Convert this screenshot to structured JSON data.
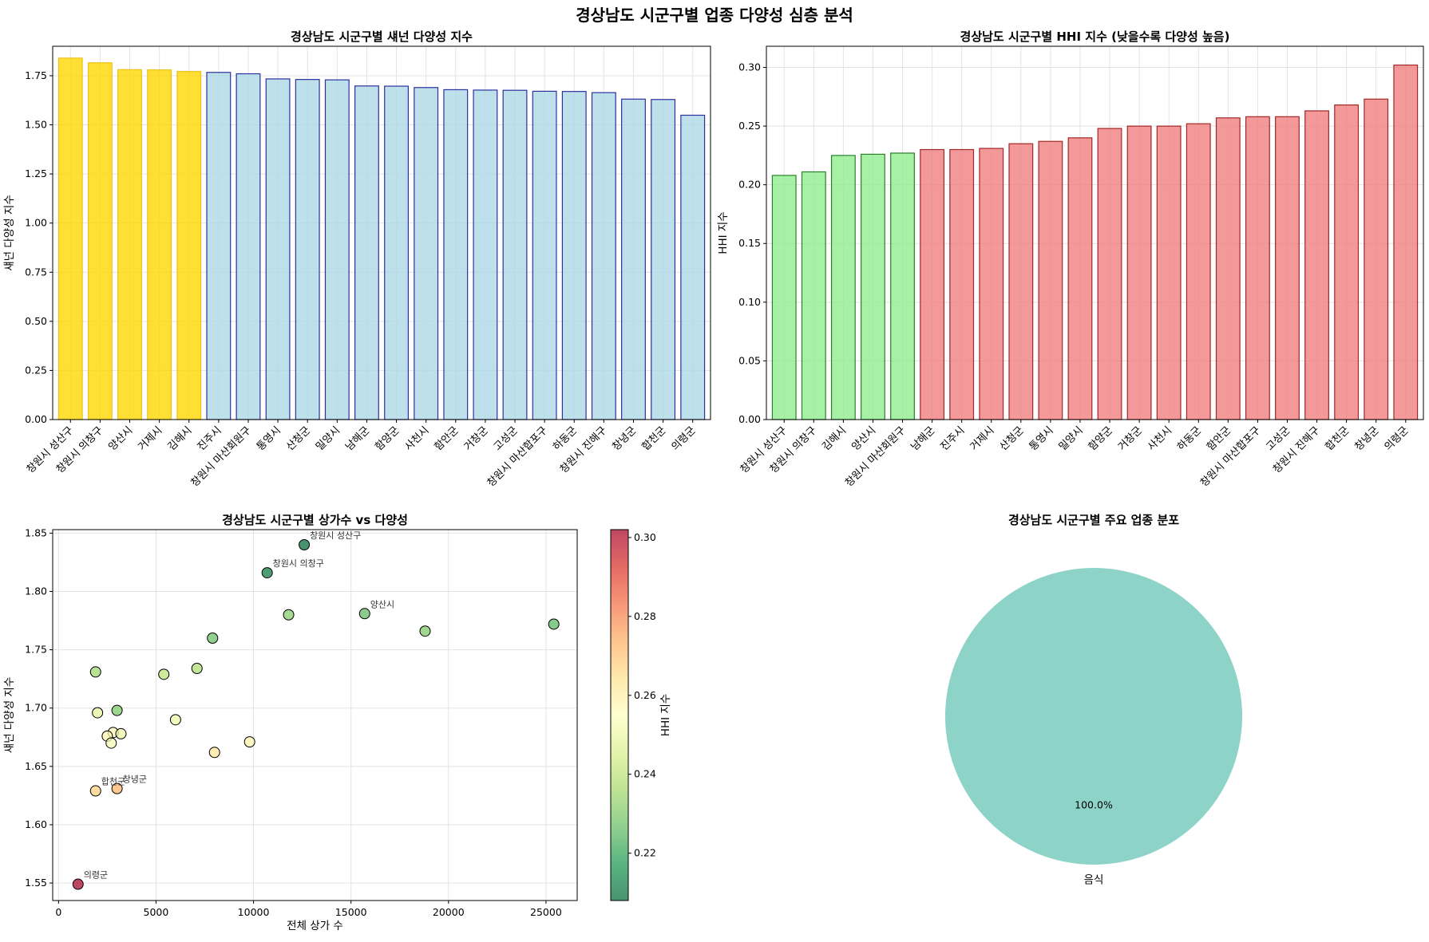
{
  "suptitle": "경상남도 시군구별 업종 다양성 심층 분석",
  "chart_data": [
    {
      "id": "shannon",
      "type": "bar",
      "title": "경상남도 시군구별 섀넌 다양성 지수",
      "xlabel": "",
      "ylabel": "섀넌 다양성 지수",
      "ylim": [
        0,
        1.9
      ],
      "yticks": [
        0.0,
        0.25,
        0.5,
        0.75,
        1.0,
        1.25,
        1.5,
        1.75
      ],
      "grid": true,
      "categories": [
        "창원시 성산구",
        "창원시 의창구",
        "양산시",
        "거제시",
        "김해시",
        "진주시",
        "창원시 마산회원구",
        "통영시",
        "산청군",
        "밀양시",
        "남해군",
        "함양군",
        "사천시",
        "함안군",
        "거창군",
        "고성군",
        "창원시 마산합포구",
        "하동군",
        "창원시 진해구",
        "창녕군",
        "합천군",
        "의령군"
      ],
      "values": [
        1.84,
        1.816,
        1.781,
        1.78,
        1.772,
        1.767,
        1.76,
        1.734,
        1.731,
        1.729,
        1.698,
        1.697,
        1.69,
        1.679,
        1.677,
        1.676,
        1.671,
        1.67,
        1.664,
        1.631,
        1.629,
        1.549
      ],
      "highlight_top": 5,
      "colors": {
        "highlight_fill": "#ffd700",
        "highlight_edge": "#e6b800",
        "fill": "#add8e6",
        "edge": "#00008b"
      }
    },
    {
      "id": "hhi",
      "type": "bar",
      "title": "경상남도 시군구별 HHI 지수 (낮을수록 다양성 높음)",
      "xlabel": "",
      "ylabel": "HHI 지수",
      "ylim": [
        0,
        0.318
      ],
      "yticks": [
        0.0,
        0.05,
        0.1,
        0.15,
        0.2,
        0.25,
        0.3
      ],
      "grid": true,
      "categories": [
        "창원시 성산구",
        "창원시 의창구",
        "김해시",
        "양산시",
        "창원시 마산회원구",
        "남해군",
        "진주시",
        "거제시",
        "산청군",
        "통영시",
        "밀양시",
        "함양군",
        "거창군",
        "사천시",
        "하동군",
        "함안군",
        "창원시 마산합포구",
        "고성군",
        "창원시 진해구",
        "합천군",
        "창녕군",
        "의령군"
      ],
      "values": [
        0.208,
        0.211,
        0.225,
        0.226,
        0.227,
        0.23,
        0.23,
        0.231,
        0.235,
        0.237,
        0.24,
        0.248,
        0.25,
        0.25,
        0.252,
        0.257,
        0.258,
        0.258,
        0.263,
        0.268,
        0.273,
        0.302
      ],
      "highlight_bottom": 5,
      "colors": {
        "highlight_fill": "#90ee90",
        "highlight_edge": "#006400",
        "fill": "#f08080",
        "edge": "#8b0000"
      }
    },
    {
      "id": "scatter",
      "type": "scatter",
      "title": "경상남도 시군구별 상가수 vs 다양성",
      "xlabel": "전체 상가 수",
      "ylabel": "섀넌 다양성 지수",
      "xlim": [
        -300,
        26600
      ],
      "ylim": [
        1.535,
        1.853
      ],
      "xticks": [
        0,
        5000,
        10000,
        15000,
        20000,
        25000
      ],
      "yticks": [
        1.55,
        1.6,
        1.65,
        1.7,
        1.75,
        1.8,
        1.85
      ],
      "grid": true,
      "colorbar": {
        "label": "HHI 지수",
        "min": 0.208,
        "max": 0.302,
        "ticks": [
          0.22,
          0.24,
          0.26,
          0.28,
          0.3
        ],
        "colormap": "RdYlGn_r"
      },
      "points": [
        {
          "x": 12600,
          "y": 1.84,
          "hhi": 0.208,
          "label": "창원시 성산구"
        },
        {
          "x": 10700,
          "y": 1.816,
          "hhi": 0.211,
          "label": "창원시 의창구"
        },
        {
          "x": 15700,
          "y": 1.781,
          "hhi": 0.226,
          "label": "양산시"
        },
        {
          "x": 11800,
          "y": 1.78,
          "hhi": 0.231,
          "label": ""
        },
        {
          "x": 25400,
          "y": 1.772,
          "hhi": 0.225,
          "label": ""
        },
        {
          "x": 18800,
          "y": 1.766,
          "hhi": 0.23,
          "label": ""
        },
        {
          "x": 7900,
          "y": 1.76,
          "hhi": 0.227,
          "label": ""
        },
        {
          "x": 7100,
          "y": 1.734,
          "hhi": 0.237,
          "label": ""
        },
        {
          "x": 1900,
          "y": 1.731,
          "hhi": 0.235,
          "label": ""
        },
        {
          "x": 5400,
          "y": 1.729,
          "hhi": 0.24,
          "label": ""
        },
        {
          "x": 2000,
          "y": 1.696,
          "hhi": 0.248,
          "label": ""
        },
        {
          "x": 3000,
          "y": 1.698,
          "hhi": 0.23,
          "label": ""
        },
        {
          "x": 6000,
          "y": 1.69,
          "hhi": 0.25,
          "label": ""
        },
        {
          "x": 2800,
          "y": 1.679,
          "hhi": 0.257,
          "label": ""
        },
        {
          "x": 3200,
          "y": 1.678,
          "hhi": 0.25,
          "label": ""
        },
        {
          "x": 2500,
          "y": 1.676,
          "hhi": 0.258,
          "label": ""
        },
        {
          "x": 9800,
          "y": 1.671,
          "hhi": 0.258,
          "label": ""
        },
        {
          "x": 2700,
          "y": 1.67,
          "hhi": 0.252,
          "label": ""
        },
        {
          "x": 8000,
          "y": 1.662,
          "hhi": 0.263,
          "label": ""
        },
        {
          "x": 3000,
          "y": 1.631,
          "hhi": 0.273,
          "label": "창녕군"
        },
        {
          "x": 1900,
          "y": 1.629,
          "hhi": 0.268,
          "label": "합천군"
        },
        {
          "x": 1000,
          "y": 1.549,
          "hhi": 0.302,
          "label": "의령군"
        }
      ]
    },
    {
      "id": "pie",
      "type": "pie",
      "title": "경상남도 시군구별 주요 업종 분포",
      "slices": [
        {
          "label": "음식",
          "value": 100.0,
          "pct_label": "100.0%",
          "color": "#8dd3c7"
        }
      ]
    }
  ]
}
